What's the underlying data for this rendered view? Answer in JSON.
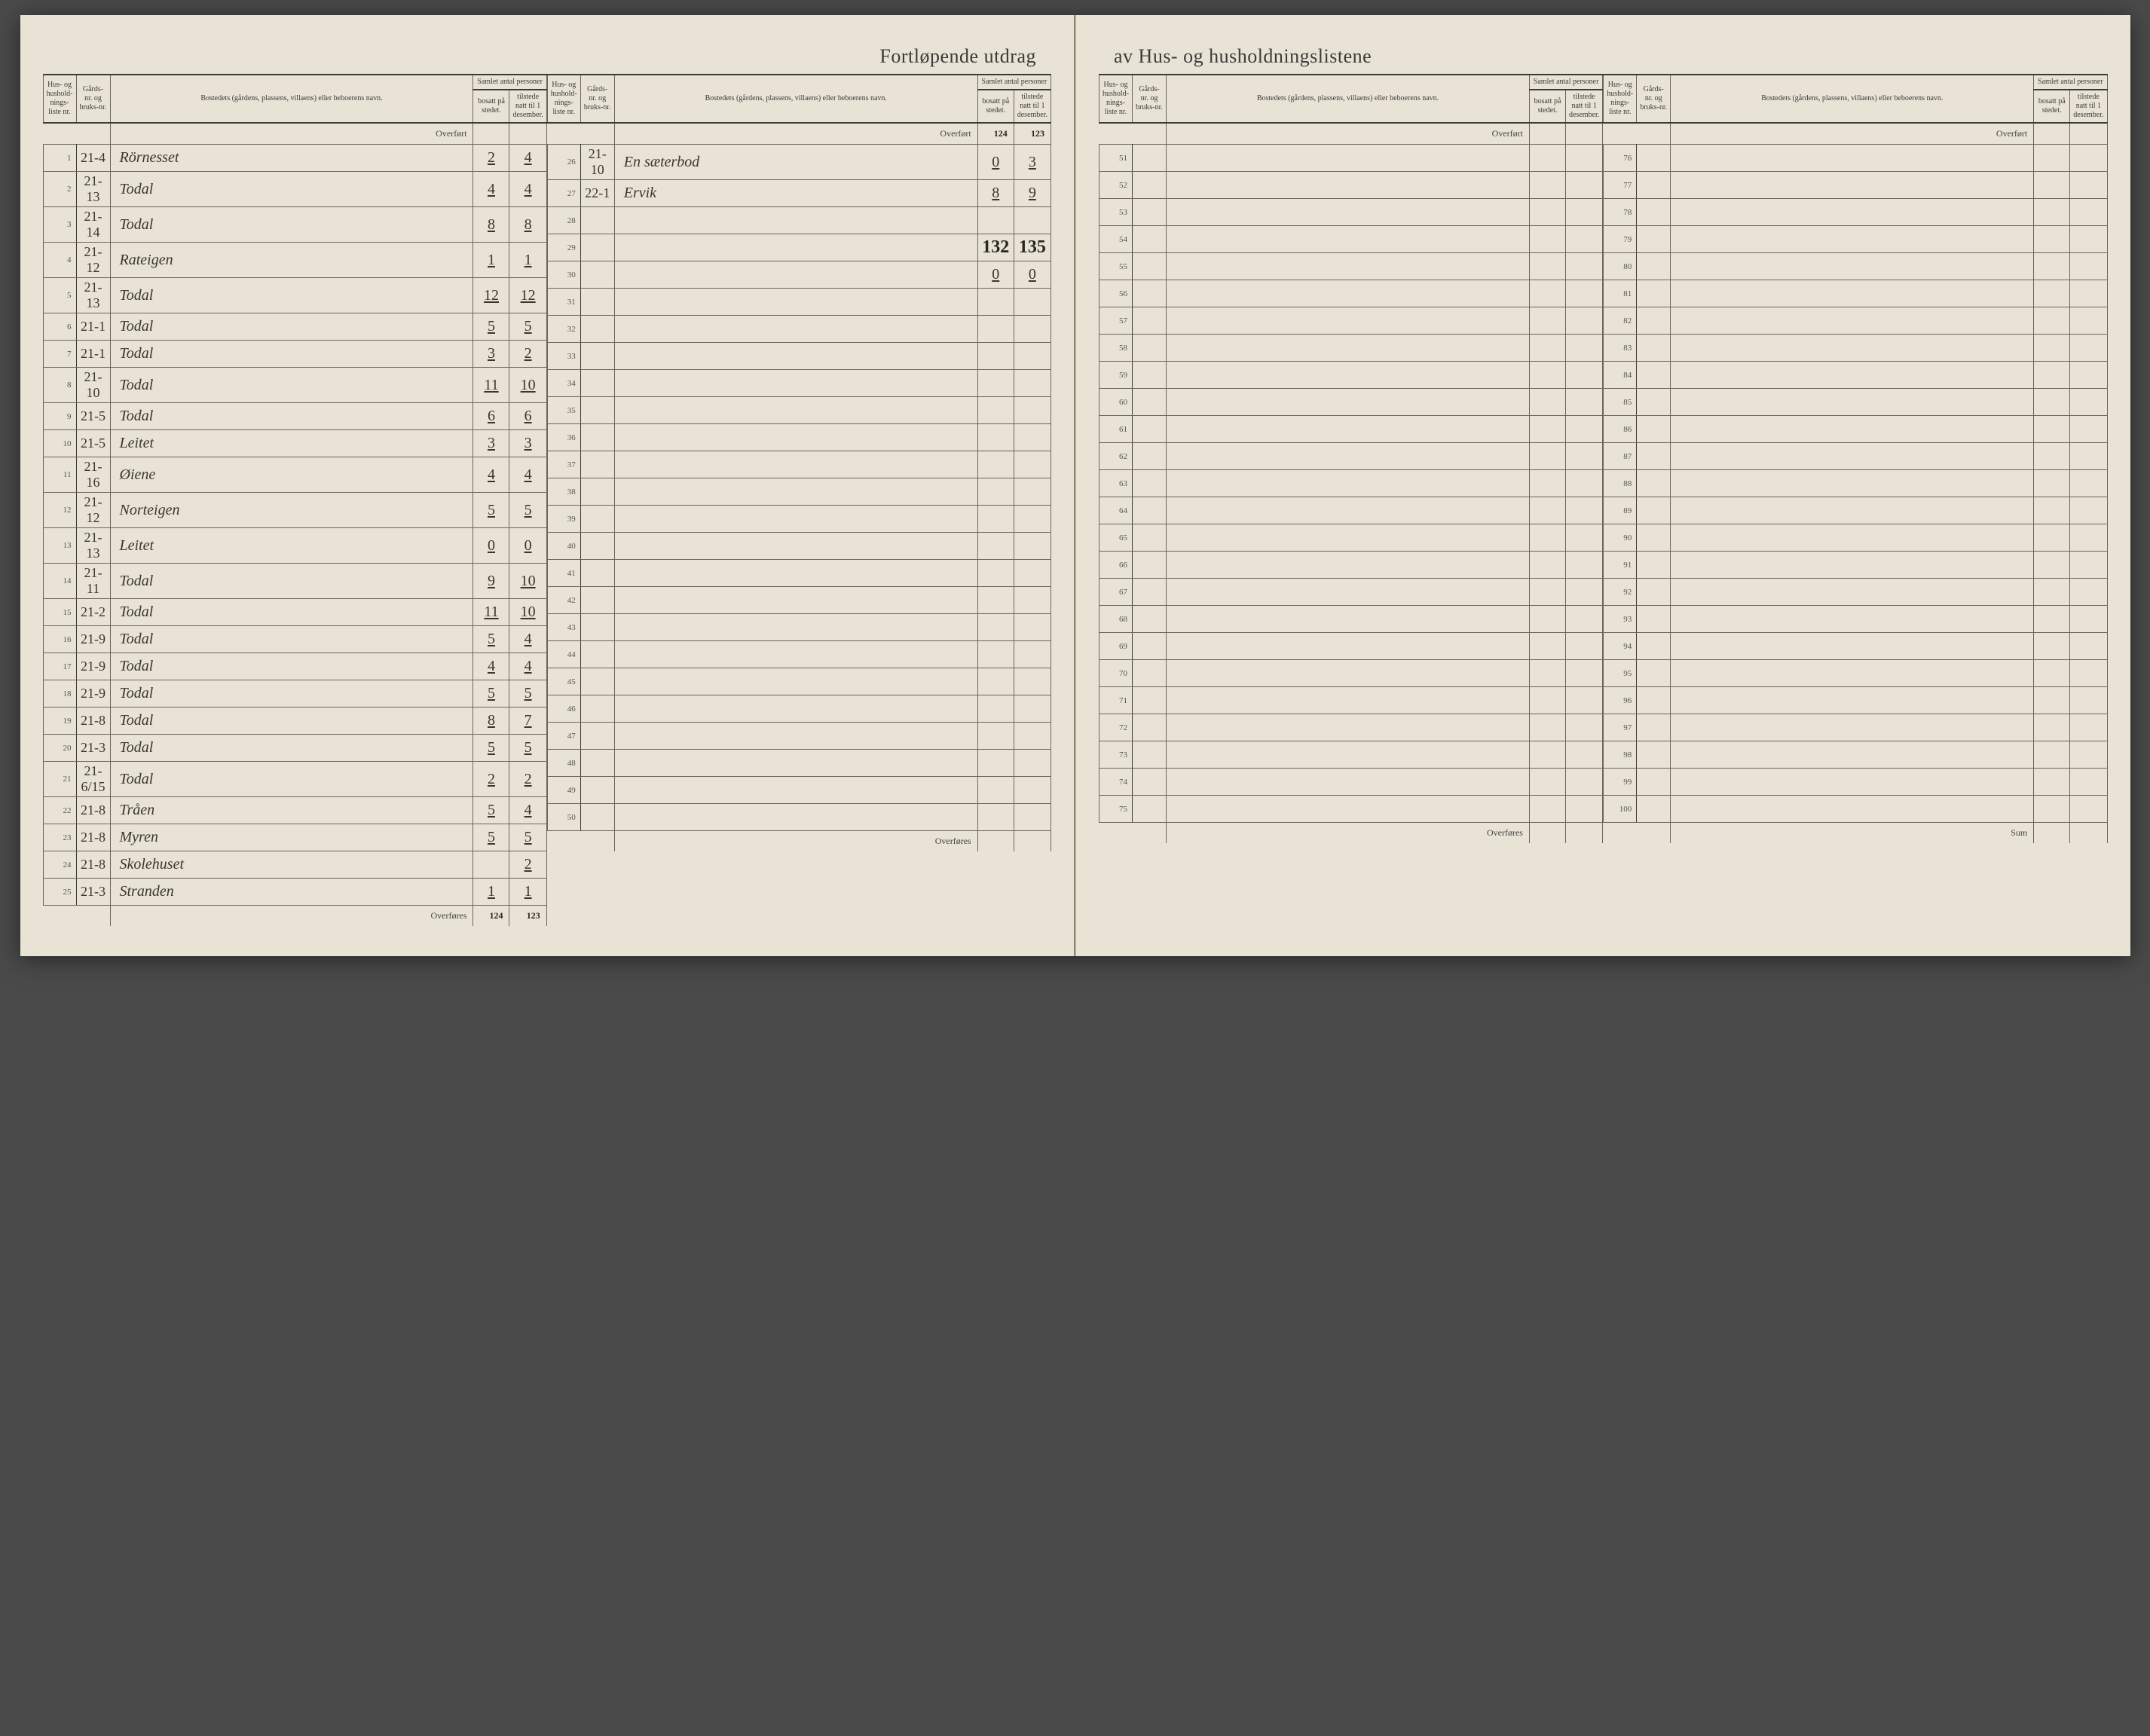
{
  "title_left": "Fortløpende utdrag",
  "title_right": "av Hus- og husholdningslistene",
  "headers": {
    "liste": "Hus- og hushold-nings-liste nr.",
    "gard": "Gårds-nr. og bruks-nr.",
    "name": "Bostedets (gårdens, plassens, villaens) eller beboerens navn.",
    "group": "Samlet antal personer",
    "bosatt": "bosatt på stedet.",
    "tilstede": "tilstede natt til 1 desember."
  },
  "labels": {
    "overfort": "Overført",
    "overfores": "Overføres",
    "sum": "Sum"
  },
  "col1_overfort": {
    "bosatt": "",
    "tilstede": ""
  },
  "col1_rows": [
    {
      "n": "1",
      "g": "21-4",
      "name": "Rörnesset",
      "b": "2",
      "t": "4"
    },
    {
      "n": "2",
      "g": "21-13",
      "name": "Todal",
      "b": "4",
      "t": "4"
    },
    {
      "n": "3",
      "g": "21-14",
      "name": "Todal",
      "b": "8",
      "t": "8"
    },
    {
      "n": "4",
      "g": "21-12",
      "name": "Rateigen",
      "b": "1",
      "t": "1"
    },
    {
      "n": "5",
      "g": "21-13",
      "name": "Todal",
      "b": "12",
      "t": "12"
    },
    {
      "n": "6",
      "g": "21-1",
      "name": "Todal",
      "b": "5",
      "t": "5"
    },
    {
      "n": "7",
      "g": "21-1",
      "name": "Todal",
      "b": "3",
      "t": "2"
    },
    {
      "n": "8",
      "g": "21-10",
      "name": "Todal",
      "b": "11",
      "t": "10"
    },
    {
      "n": "9",
      "g": "21-5",
      "name": "Todal",
      "b": "6",
      "t": "6"
    },
    {
      "n": "10",
      "g": "21-5",
      "name": "Leitet",
      "b": "3",
      "t": "3"
    },
    {
      "n": "11",
      "g": "21-16",
      "name": "Øiene",
      "b": "4",
      "t": "4"
    },
    {
      "n": "12",
      "g": "21-12",
      "name": "Norteigen",
      "b": "5",
      "t": "5"
    },
    {
      "n": "13",
      "g": "21-13",
      "name": "Leitet",
      "b": "0",
      "t": "0"
    },
    {
      "n": "14",
      "g": "21-11",
      "name": "Todal",
      "b": "9",
      "t": "10"
    },
    {
      "n": "15",
      "g": "21-2",
      "name": "Todal",
      "b": "11",
      "t": "10"
    },
    {
      "n": "16",
      "g": "21-9",
      "name": "Todal",
      "b": "5",
      "t": "4"
    },
    {
      "n": "17",
      "g": "21-9",
      "name": "Todal",
      "b": "4",
      "t": "4"
    },
    {
      "n": "18",
      "g": "21-9",
      "name": "Todal",
      "b": "5",
      "t": "5"
    },
    {
      "n": "19",
      "g": "21-8",
      "name": "Todal",
      "b": "8",
      "t": "7"
    },
    {
      "n": "20",
      "g": "21-3",
      "name": "Todal",
      "b": "5",
      "t": "5"
    },
    {
      "n": "21",
      "g": "21-6/15",
      "name": "Todal",
      "b": "2",
      "t": "2"
    },
    {
      "n": "22",
      "g": "21-8",
      "name": "Tråen",
      "b": "5",
      "t": "4"
    },
    {
      "n": "23",
      "g": "21-8",
      "name": "Myren",
      "b": "5",
      "t": "5"
    },
    {
      "n": "24",
      "g": "21-8",
      "name": "Skolehuset",
      "b": "",
      "t": "2"
    },
    {
      "n": "25",
      "g": "21-3",
      "name": "Stranden",
      "b": "1",
      "t": "1"
    }
  ],
  "col1_footer": {
    "bosatt": "124",
    "tilstede": "123"
  },
  "col2_overfort": {
    "bosatt": "124",
    "tilstede": "123"
  },
  "col2_rows": [
    {
      "n": "26",
      "g": "21-10",
      "name": "En sæterbod",
      "b": "0",
      "t": "3"
    },
    {
      "n": "27",
      "g": "22-1",
      "name": "Ervik",
      "b": "8",
      "t": "9"
    },
    {
      "n": "28",
      "g": "",
      "name": "",
      "b": "",
      "t": ""
    },
    {
      "n": "29",
      "g": "",
      "name": "",
      "b": "132",
      "t": "135",
      "bold": true
    },
    {
      "n": "30",
      "g": "",
      "name": "",
      "b": "0",
      "t": "0"
    },
    {
      "n": "31",
      "g": "",
      "name": "",
      "b": "",
      "t": ""
    },
    {
      "n": "32",
      "g": "",
      "name": "",
      "b": "",
      "t": ""
    },
    {
      "n": "33",
      "g": "",
      "name": "",
      "b": "",
      "t": ""
    },
    {
      "n": "34",
      "g": "",
      "name": "",
      "b": "",
      "t": ""
    },
    {
      "n": "35",
      "g": "",
      "name": "",
      "b": "",
      "t": ""
    },
    {
      "n": "36",
      "g": "",
      "name": "",
      "b": "",
      "t": ""
    },
    {
      "n": "37",
      "g": "",
      "name": "",
      "b": "",
      "t": ""
    },
    {
      "n": "38",
      "g": "",
      "name": "",
      "b": "",
      "t": ""
    },
    {
      "n": "39",
      "g": "",
      "name": "",
      "b": "",
      "t": ""
    },
    {
      "n": "40",
      "g": "",
      "name": "",
      "b": "",
      "t": ""
    },
    {
      "n": "41",
      "g": "",
      "name": "",
      "b": "",
      "t": ""
    },
    {
      "n": "42",
      "g": "",
      "name": "",
      "b": "",
      "t": ""
    },
    {
      "n": "43",
      "g": "",
      "name": "",
      "b": "",
      "t": ""
    },
    {
      "n": "44",
      "g": "",
      "name": "",
      "b": "",
      "t": ""
    },
    {
      "n": "45",
      "g": "",
      "name": "",
      "b": "",
      "t": ""
    },
    {
      "n": "46",
      "g": "",
      "name": "",
      "b": "",
      "t": ""
    },
    {
      "n": "47",
      "g": "",
      "name": "",
      "b": "",
      "t": ""
    },
    {
      "n": "48",
      "g": "",
      "name": "",
      "b": "",
      "t": ""
    },
    {
      "n": "49",
      "g": "",
      "name": "",
      "b": "",
      "t": ""
    },
    {
      "n": "50",
      "g": "",
      "name": "",
      "b": "",
      "t": ""
    }
  ],
  "col2_footer": {
    "bosatt": "",
    "tilstede": ""
  },
  "col3_rows": [
    {
      "n": "51"
    },
    {
      "n": "52"
    },
    {
      "n": "53"
    },
    {
      "n": "54"
    },
    {
      "n": "55"
    },
    {
      "n": "56"
    },
    {
      "n": "57"
    },
    {
      "n": "58"
    },
    {
      "n": "59"
    },
    {
      "n": "60"
    },
    {
      "n": "61"
    },
    {
      "n": "62"
    },
    {
      "n": "63"
    },
    {
      "n": "64"
    },
    {
      "n": "65"
    },
    {
      "n": "66"
    },
    {
      "n": "67"
    },
    {
      "n": "68"
    },
    {
      "n": "69"
    },
    {
      "n": "70"
    },
    {
      "n": "71"
    },
    {
      "n": "72"
    },
    {
      "n": "73"
    },
    {
      "n": "74"
    },
    {
      "n": "75"
    }
  ],
  "col4_rows": [
    {
      "n": "76"
    },
    {
      "n": "77"
    },
    {
      "n": "78"
    },
    {
      "n": "79"
    },
    {
      "n": "80"
    },
    {
      "n": "81"
    },
    {
      "n": "82"
    },
    {
      "n": "83"
    },
    {
      "n": "84"
    },
    {
      "n": "85"
    },
    {
      "n": "86"
    },
    {
      "n": "87"
    },
    {
      "n": "88"
    },
    {
      "n": "89"
    },
    {
      "n": "90"
    },
    {
      "n": "91"
    },
    {
      "n": "92"
    },
    {
      "n": "93"
    },
    {
      "n": "94"
    },
    {
      "n": "95"
    },
    {
      "n": "96"
    },
    {
      "n": "97"
    },
    {
      "n": "98"
    },
    {
      "n": "99"
    },
    {
      "n": "100"
    }
  ],
  "colors": {
    "paper": "#e8e3d5",
    "ink_print": "#3a3a3a",
    "ink_hand": "#3a3530",
    "border": "#6b6658"
  }
}
